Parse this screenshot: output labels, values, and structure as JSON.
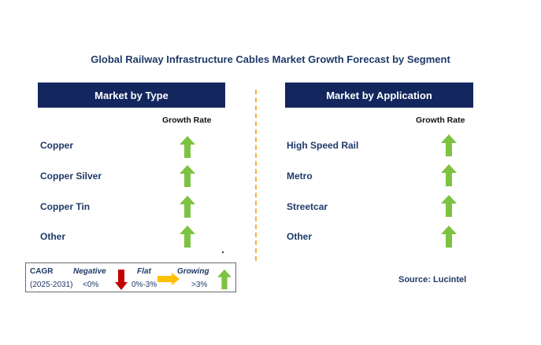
{
  "title": "Global Railway Infrastructure Cables Market Growth Forecast by Segment",
  "left_panel": {
    "header": "Market by Type",
    "growth_label": "Growth Rate",
    "items": [
      {
        "label": "Copper",
        "trend": "growing"
      },
      {
        "label": "Copper Silver",
        "trend": "growing"
      },
      {
        "label": "Copper Tin",
        "trend": "growing"
      },
      {
        "label": "Other",
        "trend": "growing"
      }
    ]
  },
  "right_panel": {
    "header": "Market by Application",
    "growth_label": "Growth Rate",
    "items": [
      {
        "label": "High Speed Rail",
        "trend": "growing"
      },
      {
        "label": "Metro",
        "trend": "growing"
      },
      {
        "label": "Streetcar",
        "trend": "growing"
      },
      {
        "label": "Other",
        "trend": "growing"
      }
    ]
  },
  "legend": {
    "cagr_label": "CAGR",
    "period": "(2025-2031)",
    "negative_label": "Negative",
    "negative_range": "<0%",
    "flat_label": "Flat",
    "flat_range": "0%-3%",
    "growing_label": "Growing",
    "growing_range": ">3%"
  },
  "source": "Source: Lucintel",
  "colors": {
    "header_bg": "#13275e",
    "text_navy": "#1f3a68",
    "growing_arrow": "#7dc242",
    "negative_arrow": "#c00000",
    "flat_arrow": "#ffc000",
    "divider": "#f2b233"
  }
}
